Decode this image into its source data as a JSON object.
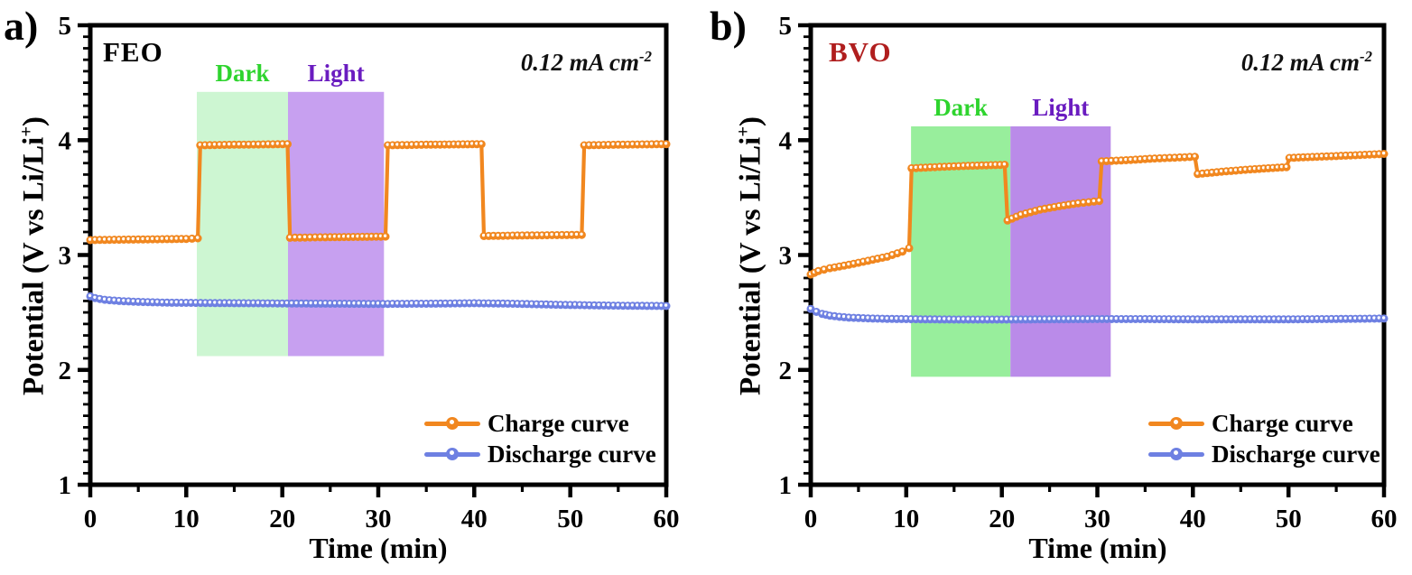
{
  "figure": {
    "background": "#ffffff"
  },
  "chart_data": [
    {
      "type": "line",
      "panel_label": "a)",
      "title": "FEO",
      "title_color": "#000000",
      "xlabel": "Time (min)",
      "ylabel_prefix": "Potential (V vs Li/Li",
      "ylabel_sup": "+",
      "ylabel_suffix": ")",
      "annotation_prefix": "0.12 mA cm",
      "annotation_sup": "-2",
      "xlim": [
        0,
        60
      ],
      "ylim": [
        1,
        5
      ],
      "xticks": [
        0,
        10,
        20,
        30,
        40,
        50,
        60
      ],
      "yticks": [
        1,
        2,
        3,
        4,
        5
      ],
      "x_minor_step": 5,
      "y_minor_step": 0.1,
      "grid": false,
      "legend_position": "lower right",
      "bands": [
        {
          "label": "Dark",
          "label_color": "#2ed42e",
          "fill": "#cdf6d2",
          "x0": 11.1,
          "x1": 20.6,
          "y0": 2.12,
          "y1": 4.42
        },
        {
          "label": "Light",
          "label_color": "#6a1cc0",
          "fill": "#c7a0f0",
          "x0": 20.6,
          "x1": 30.6,
          "y0": 2.12,
          "y1": 4.42
        }
      ],
      "series": [
        {
          "name": "Charge curve",
          "color": "#f1871f",
          "marker_core": "#ffffff",
          "points": [
            [
              0,
              3.13
            ],
            [
              5,
              3.135
            ],
            [
              10,
              3.14
            ],
            [
              11.2,
              3.145
            ],
            [
              11.45,
              3.955
            ],
            [
              15,
              3.96
            ],
            [
              20.55,
              3.965
            ],
            [
              20.8,
              3.15
            ],
            [
              25,
              3.155
            ],
            [
              30.75,
              3.16
            ],
            [
              31.0,
              3.955
            ],
            [
              35,
              3.96
            ],
            [
              40.75,
              3.965
            ],
            [
              41.0,
              3.165
            ],
            [
              45,
              3.17
            ],
            [
              51.2,
              3.175
            ],
            [
              51.45,
              3.955
            ],
            [
              55,
              3.96
            ],
            [
              60,
              3.965
            ]
          ]
        },
        {
          "name": "Discharge curve",
          "color": "#6e80e2",
          "marker_core": "#ffffff",
          "points": [
            [
              0,
              2.64
            ],
            [
              0.5,
              2.625
            ],
            [
              1.5,
              2.61
            ],
            [
              3,
              2.6
            ],
            [
              5,
              2.592
            ],
            [
              8,
              2.585
            ],
            [
              12,
              2.582
            ],
            [
              16,
              2.58
            ],
            [
              20,
              2.578
            ],
            [
              25,
              2.576
            ],
            [
              30,
              2.574
            ],
            [
              35,
              2.576
            ],
            [
              40,
              2.58
            ],
            [
              44,
              2.576
            ],
            [
              48,
              2.568
            ],
            [
              52,
              2.562
            ],
            [
              56,
              2.558
            ],
            [
              60,
              2.556
            ]
          ]
        }
      ]
    },
    {
      "type": "line",
      "panel_label": "b)",
      "title": "BVO",
      "title_color": "#b01e1e",
      "xlabel": "Time (min)",
      "ylabel_prefix": "Potential (V vs Li/Li",
      "ylabel_sup": "+",
      "ylabel_suffix": ")",
      "annotation_prefix": "0.12 mA cm",
      "annotation_sup": "-2",
      "xlim": [
        0,
        60
      ],
      "ylim": [
        1,
        5
      ],
      "xticks": [
        0,
        10,
        20,
        30,
        40,
        50,
        60
      ],
      "yticks": [
        1,
        2,
        3,
        4,
        5
      ],
      "x_minor_step": 5,
      "y_minor_step": 0.1,
      "grid": false,
      "legend_position": "lower right",
      "bands": [
        {
          "label": "Dark",
          "label_color": "#2ed42e",
          "fill": "#98ee9c",
          "x0": 10.5,
          "x1": 20.9,
          "y0": 1.94,
          "y1": 4.12
        },
        {
          "label": "Light",
          "label_color": "#6a1cc0",
          "fill": "#ba8be9",
          "x0": 20.9,
          "x1": 31.4,
          "y0": 1.94,
          "y1": 4.12
        }
      ],
      "series": [
        {
          "name": "Charge curve",
          "color": "#f1871f",
          "marker_core": "#ffffff",
          "points": [
            [
              0,
              2.83
            ],
            [
              0.8,
              2.86
            ],
            [
              2,
              2.885
            ],
            [
              4,
              2.915
            ],
            [
              6,
              2.95
            ],
            [
              8,
              2.985
            ],
            [
              9.6,
              3.03
            ],
            [
              10.3,
              3.06
            ],
            [
              10.55,
              3.755
            ],
            [
              13,
              3.765
            ],
            [
              16,
              3.775
            ],
            [
              20.3,
              3.785
            ],
            [
              20.6,
              3.3
            ],
            [
              22,
              3.35
            ],
            [
              24,
              3.395
            ],
            [
              26,
              3.425
            ],
            [
              28,
              3.45
            ],
            [
              30.2,
              3.47
            ],
            [
              30.45,
              3.815
            ],
            [
              33,
              3.825
            ],
            [
              36,
              3.84
            ],
            [
              40.2,
              3.855
            ],
            [
              40.5,
              3.705
            ],
            [
              43,
              3.725
            ],
            [
              46,
              3.745
            ],
            [
              49.8,
              3.765
            ],
            [
              50.1,
              3.845
            ],
            [
              53,
              3.855
            ],
            [
              56,
              3.865
            ],
            [
              60,
              3.88
            ]
          ]
        },
        {
          "name": "Discharge curve",
          "color": "#6e80e2",
          "marker_core": "#ffffff",
          "points": [
            [
              0,
              2.53
            ],
            [
              0.6,
              2.505
            ],
            [
              1.2,
              2.487
            ],
            [
              2,
              2.472
            ],
            [
              3,
              2.462
            ],
            [
              4,
              2.455
            ],
            [
              6,
              2.448
            ],
            [
              8,
              2.444
            ],
            [
              12,
              2.44
            ],
            [
              16,
              2.438
            ],
            [
              20,
              2.438
            ],
            [
              25,
              2.44
            ],
            [
              30,
              2.442
            ],
            [
              35,
              2.442
            ],
            [
              40,
              2.44
            ],
            [
              45,
              2.44
            ],
            [
              50,
              2.44
            ],
            [
              55,
              2.443
            ],
            [
              60,
              2.447
            ]
          ]
        }
      ]
    }
  ]
}
